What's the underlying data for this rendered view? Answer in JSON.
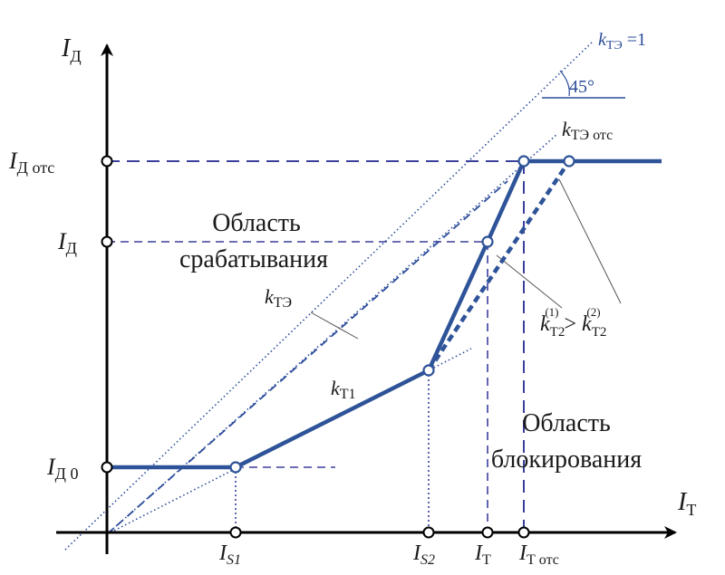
{
  "axes": {
    "y_axis": {
      "symbol": "I",
      "subscript": "Д"
    },
    "x_axis": {
      "symbol": "I",
      "subscript": "Т"
    }
  },
  "y_ticks": [
    {
      "symbol": "I",
      "subscript": "Д отс"
    },
    {
      "symbol": "I",
      "subscript": "Д"
    },
    {
      "symbol": "I",
      "subscript": "Д 0"
    }
  ],
  "x_ticks": [
    {
      "symbol": "I",
      "subscript": "S1"
    },
    {
      "symbol": "I",
      "subscript": "S2"
    },
    {
      "symbol": "I",
      "subscript": "Т"
    },
    {
      "symbol": "I",
      "subscript": "Т отс"
    }
  ],
  "line_labels": {
    "k_te_1": {
      "symbol": "k",
      "subscript": "ТЭ",
      "suffix": " =1"
    },
    "angle": "45°",
    "k_te_ots": {
      "symbol": "k",
      "subscript": "ТЭ отс"
    },
    "k_te": {
      "symbol": "k",
      "subscript": "ТЭ"
    },
    "k_t1": {
      "symbol": "k",
      "subscript": "Т1"
    }
  },
  "inequality": {
    "left": {
      "symbol": "k",
      "subscript": "Т2",
      "superscript": "(1)"
    },
    "operator": " > ",
    "right": {
      "symbol": "k",
      "subscript": "Т2",
      "superscript": "(2)"
    }
  },
  "regions": {
    "operate": {
      "line1": "Область",
      "line2": "срабатывания"
    },
    "block": {
      "line1": "Область",
      "line2": "блокирования"
    }
  },
  "colors": {
    "axis": "#000000",
    "characteristic": "#2e5398",
    "guide": "#3b3f9c",
    "reference": "#2b4c9a"
  }
}
